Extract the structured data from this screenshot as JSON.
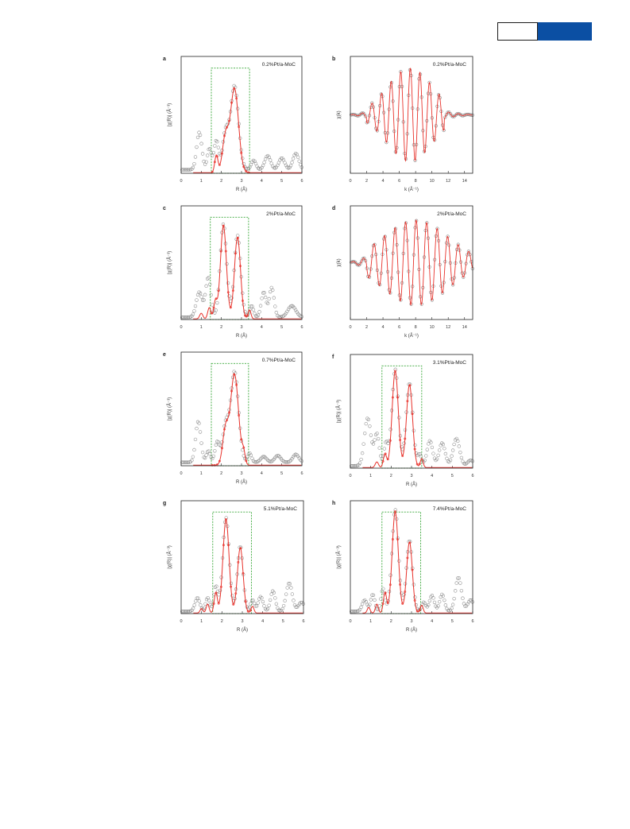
{
  "header": {
    "accent": "#0b4fa3"
  },
  "colors": {
    "fit": "#e8312a",
    "data": "#888888",
    "box": "#3aa83a",
    "frame": "#222222"
  },
  "chart_data": [
    {
      "panel": "a",
      "type": "scatter",
      "label": "0.2%Pt/a-MoC",
      "xlabel": "R (Å)",
      "ylabel": "|χ(R)| (Å⁻³)",
      "xlim": [
        0,
        6
      ],
      "ylim": [
        0,
        1
      ],
      "xticks": [
        "0",
        "1",
        "2",
        "3",
        "4",
        "5",
        "6"
      ],
      "box": [
        1.5,
        3.4,
        0.9
      ],
      "peaks": [
        [
          0.9,
          0.32,
          0.13
        ],
        [
          1.4,
          0.18,
          0.1
        ],
        [
          1.75,
          0.25,
          0.12
        ],
        [
          2.2,
          0.3,
          0.14
        ],
        [
          2.65,
          0.72,
          0.2
        ],
        [
          3.6,
          0.08,
          0.12
        ],
        [
          4.3,
          0.12,
          0.15
        ],
        [
          5.0,
          0.1,
          0.15
        ],
        [
          5.7,
          0.14,
          0.15
        ]
      ],
      "fitpeaks": [
        [
          1.75,
          0.15,
          0.08
        ],
        [
          2.2,
          0.3,
          0.15
        ],
        [
          2.65,
          0.72,
          0.2
        ]
      ],
      "base": 0.03
    },
    {
      "panel": "b",
      "type": "line",
      "label": "0.2%Pt/a-MoC",
      "xlabel": "k (Å⁻¹)",
      "ylabel": "χ(k)",
      "xlim": [
        0,
        15
      ],
      "ylim": [
        -1,
        1
      ],
      "xticks": [
        "0",
        "2",
        "4",
        "6",
        "8",
        "10",
        "12",
        "14"
      ],
      "osc": {
        "freq": 1.7,
        "center": 7.3,
        "width": 2.8,
        "amp": 0.8,
        "lo": 2,
        "hi": 11.5
      }
    },
    {
      "panel": "c",
      "type": "scatter",
      "label": "2%Pt/a-MoC",
      "xlabel": "R (Å)",
      "ylabel": "|χ(R)| (Å⁻³)",
      "xlim": [
        0,
        6
      ],
      "ylim": [
        0,
        1
      ],
      "xticks": [
        "0",
        "1",
        "2",
        "3",
        "4",
        "5",
        "6"
      ],
      "box": [
        1.45,
        3.35,
        0.9
      ],
      "peaks": [
        [
          0.9,
          0.22,
          0.15
        ],
        [
          1.35,
          0.35,
          0.13
        ],
        [
          2.1,
          0.82,
          0.16
        ],
        [
          2.8,
          0.72,
          0.16
        ],
        [
          3.5,
          0.1,
          0.1
        ],
        [
          4.1,
          0.22,
          0.12
        ],
        [
          4.5,
          0.26,
          0.12
        ],
        [
          5.5,
          0.1,
          0.2
        ]
      ],
      "fitpeaks": [
        [
          1.0,
          0.05,
          0.08
        ],
        [
          1.4,
          0.1,
          0.08
        ],
        [
          1.7,
          0.15,
          0.08
        ],
        [
          2.1,
          0.82,
          0.15
        ],
        [
          2.8,
          0.72,
          0.15
        ],
        [
          3.4,
          0.08,
          0.07
        ]
      ],
      "base": 0.02
    },
    {
      "panel": "d",
      "type": "line",
      "label": "2%Pt/a-MoC",
      "xlabel": "k (Å⁻¹)",
      "ylabel": "χ(k)",
      "xlim": [
        0,
        15
      ],
      "ylim": [
        -1,
        1
      ],
      "xticks": [
        "0",
        "2",
        "4",
        "6",
        "8",
        "10",
        "12",
        "14"
      ],
      "osc": {
        "freq": 1.55,
        "center": 8.0,
        "width": 4.0,
        "amp": 0.75,
        "lo": 2,
        "hi": 15
      }
    },
    {
      "panel": "e",
      "type": "scatter",
      "label": "0.7%Pt/a-MoC",
      "xlabel": "R (Å)",
      "ylabel": "|χ(R)| (Å⁻³)",
      "xlim": [
        0,
        6
      ],
      "ylim": [
        0,
        1
      ],
      "xticks": [
        "0",
        "1",
        "2",
        "3",
        "4",
        "5",
        "6"
      ],
      "box": [
        1.5,
        3.35,
        0.9
      ],
      "peaks": [
        [
          0.85,
          0.36,
          0.13
        ],
        [
          1.35,
          0.1,
          0.1
        ],
        [
          1.8,
          0.18,
          0.12
        ],
        [
          2.2,
          0.3,
          0.14
        ],
        [
          2.65,
          0.8,
          0.2
        ],
        [
          3.4,
          0.08,
          0.1
        ],
        [
          4.1,
          0.05,
          0.15
        ],
        [
          4.8,
          0.06,
          0.15
        ],
        [
          5.7,
          0.07,
          0.15
        ]
      ],
      "fitpeaks": [
        [
          2.2,
          0.3,
          0.14
        ],
        [
          2.65,
          0.8,
          0.2
        ],
        [
          3.1,
          0.1,
          0.08
        ]
      ],
      "base": 0.03
    },
    {
      "panel": "f",
      "type": "scatter",
      "label": "3.1%Pt/a-MoC",
      "xlabel": "R (Å)",
      "ylabel": "|χ(R)| (Å⁻³)",
      "xlim": [
        0,
        6
      ],
      "ylim": [
        0,
        1
      ],
      "xticks": [
        "0",
        "1",
        "2",
        "3",
        "4",
        "5",
        "6"
      ],
      "box": [
        1.55,
        3.5,
        0.9
      ],
      "peaks": [
        [
          0.85,
          0.42,
          0.16
        ],
        [
          1.3,
          0.28,
          0.12
        ],
        [
          1.75,
          0.2,
          0.1
        ],
        [
          2.2,
          0.85,
          0.16
        ],
        [
          2.9,
          0.73,
          0.16
        ],
        [
          3.4,
          0.1,
          0.1
        ],
        [
          3.9,
          0.22,
          0.14
        ],
        [
          4.5,
          0.2,
          0.15
        ],
        [
          5.2,
          0.24,
          0.16
        ],
        [
          5.9,
          0.05,
          0.15
        ]
      ],
      "fitpeaks": [
        [
          1.3,
          0.05,
          0.08
        ],
        [
          1.7,
          0.12,
          0.08
        ],
        [
          2.2,
          0.85,
          0.15
        ],
        [
          2.9,
          0.73,
          0.15
        ],
        [
          3.5,
          0.08,
          0.07
        ]
      ],
      "base": 0.02
    },
    {
      "panel": "g",
      "type": "scatter",
      "label": "5.1%Pt/a-MoC",
      "xlabel": "R (Å)",
      "ylabel": "|χ(R)| (Å⁻³)",
      "xlim": [
        0,
        6
      ],
      "ylim": [
        0,
        1
      ],
      "xticks": [
        "0",
        "1",
        "2",
        "3",
        "4",
        "5",
        "6"
      ],
      "box": [
        1.55,
        3.45,
        0.9
      ],
      "peaks": [
        [
          0.8,
          0.12,
          0.12
        ],
        [
          1.3,
          0.12,
          0.1
        ],
        [
          1.7,
          0.22,
          0.1
        ],
        [
          2.2,
          0.83,
          0.16
        ],
        [
          2.9,
          0.58,
          0.14
        ],
        [
          3.5,
          0.1,
          0.1
        ],
        [
          3.9,
          0.13,
          0.12
        ],
        [
          4.5,
          0.18,
          0.12
        ],
        [
          5.3,
          0.25,
          0.15
        ],
        [
          5.9,
          0.08,
          0.15
        ]
      ],
      "fitpeaks": [
        [
          1.0,
          0.04,
          0.07
        ],
        [
          1.3,
          0.08,
          0.07
        ],
        [
          1.7,
          0.18,
          0.08
        ],
        [
          2.2,
          0.83,
          0.15
        ],
        [
          2.9,
          0.58,
          0.14
        ],
        [
          3.5,
          0.06,
          0.07
        ]
      ],
      "base": 0.02
    },
    {
      "panel": "h",
      "type": "scatter",
      "label": "7.4%Pt/a-MoC",
      "xlabel": "R (Å)",
      "ylabel": "|χ(R)| (Å⁻³)",
      "xlim": [
        0,
        6
      ],
      "ylim": [
        0,
        1
      ],
      "xticks": [
        "0",
        "1",
        "2",
        "3",
        "4",
        "5",
        "6"
      ],
      "box": [
        1.55,
        3.45,
        0.9
      ],
      "peaks": [
        [
          0.7,
          0.1,
          0.12
        ],
        [
          1.1,
          0.15,
          0.1
        ],
        [
          1.6,
          0.2,
          0.1
        ],
        [
          2.2,
          0.9,
          0.16
        ],
        [
          2.9,
          0.63,
          0.15
        ],
        [
          3.6,
          0.08,
          0.1
        ],
        [
          4.0,
          0.14,
          0.12
        ],
        [
          4.5,
          0.15,
          0.12
        ],
        [
          5.3,
          0.3,
          0.15
        ],
        [
          5.9,
          0.1,
          0.15
        ]
      ],
      "fitpeaks": [
        [
          0.9,
          0.05,
          0.07
        ],
        [
          1.3,
          0.08,
          0.07
        ],
        [
          1.7,
          0.18,
          0.08
        ],
        [
          2.2,
          0.9,
          0.15
        ],
        [
          2.9,
          0.63,
          0.14
        ],
        [
          3.5,
          0.07,
          0.07
        ]
      ],
      "base": 0.02
    }
  ]
}
